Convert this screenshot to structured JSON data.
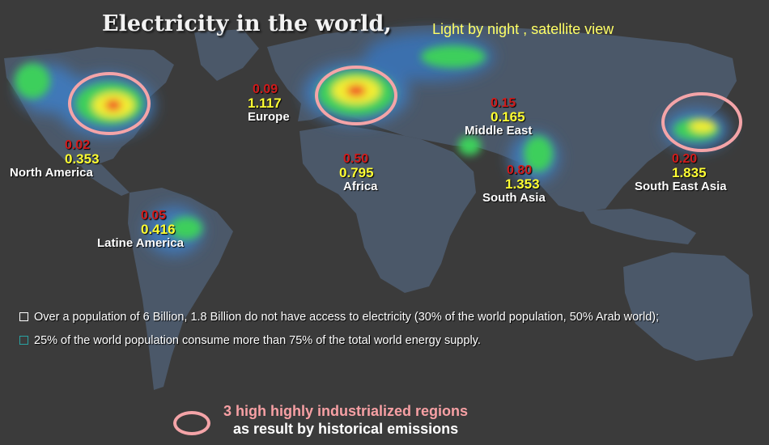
{
  "title": "Electricity in the world,",
  "subtitle": "Light by night , satellite view",
  "colors": {
    "background": "#3b3b3b",
    "land": "#4d5a6b",
    "light_blue": "#3f78b8",
    "light_green": "#3ccf5c",
    "light_yellow": "#f2ee30",
    "light_red": "#f03a2a",
    "circle": "#f4a4a8",
    "red_value": "#d11b1b",
    "yellow_value": "#ffff33"
  },
  "regions": [
    {
      "id": "north-america",
      "red": "0.02",
      "yellow": "0.353",
      "name": "North America"
    },
    {
      "id": "europe",
      "red": "0.09",
      "yellow": "1.117",
      "name": "Europe"
    },
    {
      "id": "middle-east",
      "red": "0.15",
      "yellow": "0.165",
      "name": "Middle  East"
    },
    {
      "id": "africa",
      "red": "0.50",
      "yellow": "0.795",
      "name": "Africa"
    },
    {
      "id": "south-asia",
      "red": "0.80",
      "yellow": "1.353",
      "name": "South Asia"
    },
    {
      "id": "south-east-asia",
      "red": "0.20",
      "yellow": "1.835",
      "name": "South East Asia"
    },
    {
      "id": "latin-america",
      "red": "0.05",
      "yellow": "0.416",
      "name": "Latine America"
    }
  ],
  "bullets": [
    "Over a population of 6 Billion, 1.8 Billion do not have access to electricity (30% of the world population, 50% Arab world);",
    "25% of the world population consume more than 75% of the total world energy supply."
  ],
  "legend": {
    "line1": "3 high highly industrialized regions",
    "line2": "as result by historical  emissions"
  }
}
